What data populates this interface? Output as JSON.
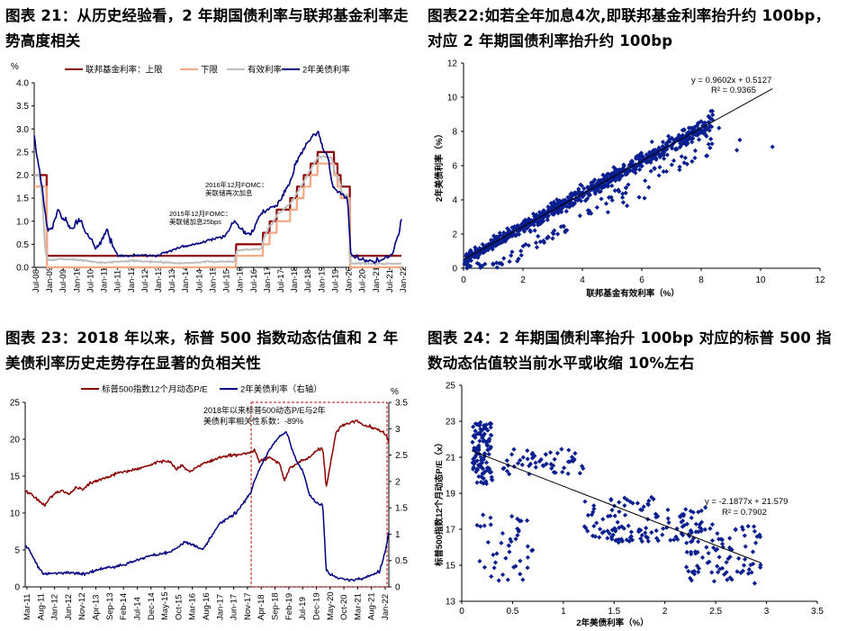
{
  "titles": {
    "t21": "图表 21：从历史经验看，2 年期国债利率与联邦基金利率走势高度相关",
    "t22": "图表22:如若全年加息4次,即联邦基金利率抬升约 100bp，对应 2 年期国债利率抬升约 100bp",
    "t23": "图表 23：2018 年以来，标普 500 指数动态估值和 2 年美债利率历史走势存在显著的负相关性",
    "t24": "图表 24：2 年期国债利率抬升 100bp 对应的标普 500 指数动态估值较当前水平或收缩 10%左右"
  },
  "chart_data": [
    {
      "id": "chart21",
      "type": "line",
      "ylabel": "%",
      "ylim": [
        0,
        4
      ],
      "yticks": [
        "0.0",
        "0.5",
        "1.0",
        "1.5",
        "2.0",
        "2.5",
        "3.0",
        "3.5",
        "4.0"
      ],
      "xticks": [
        "Jul-08",
        "Jan-09",
        "Jul-09",
        "Jan-10",
        "Jul-10",
        "Jan-11",
        "Jul-11",
        "Jan-12",
        "Jul-12",
        "Jan-13",
        "Jul-13",
        "Jan-14",
        "Jul-14",
        "Jan-15",
        "Jul-15",
        "Jan-16",
        "Jul-16",
        "Jan-17",
        "Jul-17",
        "Jan-18",
        "Jul-18",
        "Jan-19",
        "Jul-19",
        "Jan-20",
        "Jul-20",
        "Jan-21",
        "Jul-21",
        "Jan-22"
      ],
      "legend": [
        "联邦基金利率：上限",
        "下限",
        "有效利率",
        "2年美债利率"
      ],
      "colors": [
        "#8B0000",
        "#F4A582",
        "#BFBFBF",
        "#000080"
      ],
      "annotations": [
        "2015年12月FOMC：美联储加息25bps",
        "2016年12月FOMC：美联储再次加息"
      ],
      "series": [
        {
          "name": "联邦基金利率：上限",
          "x": [
            2008.5,
            2008.96,
            2008.97,
            2015.96,
            2015.97,
            2016.95,
            2016.96,
            2017.2,
            2017.21,
            2017.46,
            2017.47,
            2017.96,
            2017.97,
            2018.21,
            2018.22,
            2018.46,
            2018.47,
            2018.71,
            2018.72,
            2018.97,
            2018.98,
            2019.58,
            2019.59,
            2019.71,
            2019.72,
            2019.83,
            2019.84,
            2020.17,
            2020.18,
            2021.95,
            2021.96,
            2022.08
          ],
          "values": [
            2.0,
            2.0,
            0.25,
            0.25,
            0.5,
            0.5,
            0.75,
            0.75,
            1.0,
            1.0,
            1.25,
            1.25,
            1.5,
            1.5,
            1.75,
            1.75,
            2.0,
            2.0,
            2.25,
            2.25,
            2.5,
            2.5,
            2.25,
            2.25,
            2.0,
            2.0,
            1.75,
            1.75,
            0.25,
            0.25,
            0.25,
            0.25
          ]
        },
        {
          "name": "下限",
          "x": [
            2008.5,
            2008.96,
            2008.97,
            2015.96,
            2015.97,
            2016.95,
            2016.96,
            2017.2,
            2017.21,
            2017.46,
            2017.47,
            2017.96,
            2017.97,
            2018.21,
            2018.22,
            2018.46,
            2018.47,
            2018.71,
            2018.72,
            2018.97,
            2018.98,
            2019.58,
            2019.59,
            2019.71,
            2019.72,
            2019.83,
            2019.84,
            2020.17,
            2020.18,
            2022.08
          ],
          "values": [
            1.75,
            1.75,
            0.0,
            0.0,
            0.25,
            0.25,
            0.5,
            0.5,
            0.75,
            0.75,
            1.0,
            1.0,
            1.25,
            1.25,
            1.5,
            1.5,
            1.75,
            1.75,
            2.0,
            2.0,
            2.25,
            2.25,
            2.0,
            2.0,
            1.75,
            1.75,
            1.5,
            1.5,
            0.0,
            0.0
          ]
        },
        {
          "name": "有效利率",
          "x": [
            2008.5,
            2008.7,
            2008.8,
            2008.9,
            2009.0,
            2009.5,
            2010.0,
            2011.0,
            2012.0,
            2013.0,
            2014.0,
            2015.0,
            2015.9,
            2016.0,
            2016.9,
            2017.0,
            2017.2,
            2017.3,
            2017.5,
            2018.0,
            2018.3,
            2018.5,
            2018.8,
            2019.0,
            2019.5,
            2019.6,
            2019.8,
            2019.9,
            2020.1,
            2020.2,
            2020.5,
            2021.0,
            2021.5,
            2022.08
          ],
          "values": [
            2.0,
            2.0,
            1.5,
            0.4,
            0.15,
            0.18,
            0.17,
            0.1,
            0.14,
            0.12,
            0.09,
            0.12,
            0.13,
            0.37,
            0.4,
            0.65,
            0.9,
            0.95,
            1.15,
            1.4,
            1.68,
            1.9,
            2.2,
            2.4,
            2.38,
            2.1,
            1.85,
            1.55,
            1.58,
            0.08,
            0.09,
            0.08,
            0.08,
            0.08
          ]
        },
        {
          "name": "2年美债利率",
          "x": [
            2008.5,
            2008.6,
            2008.7,
            2008.8,
            2008.9,
            2009.0,
            2009.2,
            2009.4,
            2009.5,
            2009.7,
            2009.9,
            2010.0,
            2010.2,
            2010.4,
            2010.6,
            2010.8,
            2011.0,
            2011.2,
            2011.4,
            2011.6,
            2011.8,
            2012.0,
            2012.5,
            2013.0,
            2013.5,
            2014.0,
            2014.5,
            2015.0,
            2015.5,
            2015.9,
            2016.2,
            2016.5,
            2016.8,
            2017.0,
            2017.5,
            2018.0,
            2018.2,
            2018.5,
            2018.8,
            2019.0,
            2019.2,
            2019.4,
            2019.5,
            2019.6,
            2019.8,
            2020.0,
            2020.1,
            2020.2,
            2020.5,
            2021.0,
            2021.3,
            2021.6,
            2021.8,
            2021.9,
            2022.0,
            2022.08
          ],
          "values": [
            2.9,
            2.4,
            2.1,
            1.7,
            1.2,
            0.8,
            0.9,
            1.3,
            1.1,
            1.0,
            0.8,
            0.95,
            1.05,
            0.75,
            0.6,
            0.4,
            0.6,
            0.8,
            0.45,
            0.25,
            0.25,
            0.25,
            0.27,
            0.25,
            0.35,
            0.45,
            0.5,
            0.6,
            0.65,
            1.0,
            0.8,
            0.7,
            1.1,
            1.2,
            1.35,
            1.9,
            2.3,
            2.6,
            2.85,
            2.95,
            2.55,
            2.3,
            1.8,
            1.7,
            1.6,
            1.55,
            1.4,
            0.3,
            0.18,
            0.12,
            0.15,
            0.22,
            0.35,
            0.6,
            0.8,
            1.05
          ]
        }
      ]
    },
    {
      "id": "chart22",
      "type": "scatter",
      "xlabel": "联邦基金有效利率（%）",
      "ylabel": "2年美债利率（%）",
      "xlim": [
        0,
        12
      ],
      "ylim": [
        0,
        12
      ],
      "xticks": [
        "0",
        "2",
        "4",
        "6",
        "8",
        "10",
        "12"
      ],
      "yticks": [
        "0",
        "2",
        "4",
        "6",
        "8",
        "10",
        "12"
      ],
      "equation": "y = 0.9602x + 0.5127",
      "r2": "R² = 0.9365",
      "color": "#0A1F8F",
      "trend": {
        "slope": 0.9602,
        "intercept": 0.5127
      }
    },
    {
      "id": "chart23",
      "type": "line",
      "legend": [
        "标普500指数12个月动态P/E",
        "2年美债利率（右轴）"
      ],
      "colors": [
        "#8B0000",
        "#000080"
      ],
      "ylim_left": [
        0,
        25
      ],
      "yticks_left": [
        "0",
        "5",
        "10",
        "15",
        "20",
        "25"
      ],
      "ylabel_right": "%",
      "ylim_right": [
        0,
        3.5
      ],
      "yticks_right": [
        "0",
        "0.5",
        "1",
        "1.5",
        "2",
        "2.5",
        "3",
        "3.5"
      ],
      "xticks": [
        "Mar-11",
        "Aug-11",
        "Jan-12",
        "Jun-12",
        "Nov-12",
        "Apr-13",
        "Sep-13",
        "Feb-14",
        "Jul-14",
        "Dec-14",
        "May-15",
        "Oct-15",
        "Mar-16",
        "Aug-16",
        "Jan-17",
        "Jun-17",
        "Nov-17",
        "Apr-18",
        "Sep-18",
        "Feb-19",
        "Jul-19",
        "Dec-19",
        "May-20",
        "Oct-20",
        "Mar-21",
        "Aug-21",
        "Jan-22"
      ],
      "annotation": "2018年以来标普500动态P/E与2年美债利率相关性系数：-89%",
      "series": [
        {
          "name": "标普500指数12个月动态P/E",
          "axis": "left",
          "x": [
            2011.17,
            2011.4,
            2011.6,
            2011.75,
            2011.9,
            2012.1,
            2012.3,
            2012.5,
            2012.7,
            2012.9,
            2013.1,
            2013.4,
            2013.7,
            2014.0,
            2014.3,
            2014.6,
            2014.9,
            2015.2,
            2015.5,
            2015.7,
            2015.9,
            2016.1,
            2016.4,
            2016.7,
            2017.0,
            2017.3,
            2017.6,
            2017.9,
            2018.05,
            2018.2,
            2018.5,
            2018.8,
            2018.95,
            2019.1,
            2019.4,
            2019.7,
            2019.9,
            2020.1,
            2020.2,
            2020.3,
            2020.5,
            2020.7,
            2020.9,
            2021.1,
            2021.4,
            2021.7,
            2021.9,
            2022.0,
            2022.08
          ],
          "values": [
            13.0,
            12.5,
            11.5,
            11.0,
            12.0,
            12.8,
            13.0,
            12.6,
            13.5,
            13.2,
            14.0,
            14.5,
            15.0,
            15.5,
            15.8,
            16.0,
            16.5,
            17.0,
            17.0,
            16.0,
            16.5,
            15.5,
            16.5,
            17.0,
            17.5,
            17.8,
            18.0,
            18.2,
            18.5,
            17.0,
            17.5,
            16.8,
            14.5,
            16.0,
            17.0,
            17.5,
            18.5,
            18.8,
            13.5,
            16.0,
            21.0,
            22.0,
            22.2,
            22.5,
            21.8,
            21.5,
            21.0,
            20.5,
            19.5
          ]
        },
        {
          "name": "2年美债利率（右轴）",
          "axis": "right",
          "x": [
            2011.17,
            2011.3,
            2011.5,
            2011.7,
            2012.0,
            2012.5,
            2013.0,
            2013.5,
            2014.0,
            2014.5,
            2015.0,
            2015.5,
            2016.0,
            2016.5,
            2016.9,
            2017.0,
            2017.5,
            2017.9,
            2018.2,
            2018.5,
            2018.8,
            2019.0,
            2019.3,
            2019.5,
            2019.7,
            2019.9,
            2020.1,
            2020.2,
            2020.5,
            2021.0,
            2021.5,
            2021.8,
            2021.9,
            2022.0,
            2022.08
          ],
          "values": [
            0.8,
            0.7,
            0.45,
            0.25,
            0.27,
            0.27,
            0.25,
            0.35,
            0.4,
            0.5,
            0.6,
            0.65,
            0.85,
            0.7,
            1.1,
            1.2,
            1.4,
            1.75,
            2.25,
            2.6,
            2.85,
            2.95,
            2.4,
            2.2,
            1.75,
            1.6,
            1.55,
            0.3,
            0.18,
            0.12,
            0.2,
            0.3,
            0.5,
            0.75,
            1.05
          ]
        }
      ]
    },
    {
      "id": "chart24",
      "type": "scatter",
      "xlabel": "2年美债利率（%）",
      "ylabel": "标普500指数12个月动态P/E（x）",
      "xlim": [
        0,
        3.5
      ],
      "ylim": [
        13,
        25
      ],
      "xticks": [
        "0",
        "0.5",
        "1",
        "1.5",
        "2",
        "2.5",
        "3",
        "3.5"
      ],
      "yticks": [
        "13",
        "15",
        "17",
        "19",
        "21",
        "23",
        "25"
      ],
      "equation": "y = -2.1877x + 21.579",
      "r2": "R² = 0.7902",
      "color": "#0A1F8F",
      "trend": {
        "slope": -2.1877,
        "intercept": 21.579
      }
    }
  ]
}
